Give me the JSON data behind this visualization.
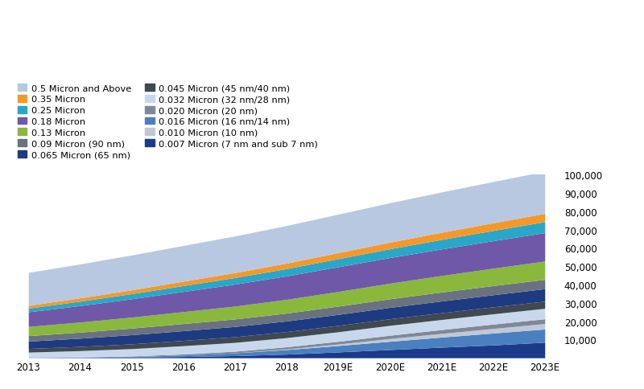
{
  "years": [
    "2013",
    "2014",
    "2015",
    "2016",
    "2017",
    "2018",
    "2019E",
    "2020E",
    "2021E",
    "2022E",
    "2023E"
  ],
  "series": [
    {
      "label": "0.007 Micron (7 nm and sub 7 nm)",
      "color": "#1b3a8a",
      "values": [
        100,
        200,
        400,
        700,
        1200,
        2000,
        3200,
        4500,
        5800,
        7000,
        8500
      ]
    },
    {
      "label": "0.016 Micron (16 nm/14 nm)",
      "color": "#4a80c0",
      "values": [
        0,
        100,
        300,
        800,
        1500,
        2500,
        3500,
        4500,
        5500,
        6500,
        7200
      ]
    },
    {
      "label": "0.010 Micron (10 nm)",
      "color": "#c0c8d8",
      "values": [
        0,
        0,
        0,
        0,
        0,
        300,
        800,
        1500,
        2000,
        2500,
        3000
      ]
    },
    {
      "label": "0.020 Micron (20 nm)",
      "color": "#808898",
      "values": [
        0,
        100,
        300,
        600,
        900,
        1200,
        1500,
        1800,
        2100,
        2400,
        2600
      ]
    },
    {
      "label": "0.032 Micron (32 nm/28 nm)",
      "color": "#c8d8ec",
      "values": [
        3000,
        3500,
        4000,
        4500,
        4800,
        5000,
        5200,
        5400,
        5500,
        5600,
        5700
      ]
    },
    {
      "label": "0.045 Micron (45 nm/40 nm)",
      "color": "#404850",
      "values": [
        2000,
        2300,
        2600,
        2900,
        3100,
        3300,
        3500,
        3600,
        3700,
        3800,
        3900
      ]
    },
    {
      "label": "0.065 Micron (65 nm)",
      "color": "#1e3a80",
      "values": [
        4000,
        4500,
        5000,
        5300,
        5600,
        5800,
        6000,
        6200,
        6400,
        6600,
        6800
      ]
    },
    {
      "label": "0.09 Micron (90 nm)",
      "color": "#6a7280",
      "values": [
        3000,
        3300,
        3600,
        3900,
        4100,
        4300,
        4500,
        4700,
        4900,
        5000,
        5100
      ]
    },
    {
      "label": "0.13 Micron",
      "color": "#8ab83c",
      "values": [
        5000,
        5500,
        6000,
        6500,
        7000,
        7500,
        8000,
        8500,
        9000,
        9500,
        10000
      ]
    },
    {
      "label": "0.18 Micron",
      "color": "#7058a8",
      "values": [
        8000,
        9000,
        10000,
        11000,
        12000,
        12800,
        13500,
        14000,
        14500,
        15000,
        15500
      ]
    },
    {
      "label": "0.25 Micron",
      "color": "#28a8c8",
      "values": [
        2000,
        2400,
        2800,
        3200,
        3600,
        4000,
        4400,
        4800,
        5200,
        5600,
        6000
      ]
    },
    {
      "label": "0.35 Micron",
      "color": "#f4982a",
      "values": [
        1500,
        1800,
        2100,
        2400,
        2700,
        3000,
        3300,
        3600,
        3900,
        4200,
        4500
      ]
    },
    {
      "label": "0.5 Micron and Above",
      "color": "#b8c8e0",
      "values": [
        18000,
        18500,
        19000,
        19500,
        20000,
        20500,
        21000,
        21500,
        22000,
        22500,
        23000
      ]
    }
  ],
  "ylim": [
    0,
    100000
  ],
  "yticks": [
    0,
    10000,
    20000,
    30000,
    40000,
    50000,
    60000,
    70000,
    80000,
    90000,
    100000
  ],
  "ytick_labels": [
    "",
    "10,000",
    "20,000",
    "30,000",
    "40,000",
    "50,000",
    "60,000",
    "70,000",
    "80,000",
    "90,000",
    "100,000"
  ],
  "background_color": "#ffffff",
  "legend_fontsize": 8.2,
  "tick_fontsize": 8.5
}
